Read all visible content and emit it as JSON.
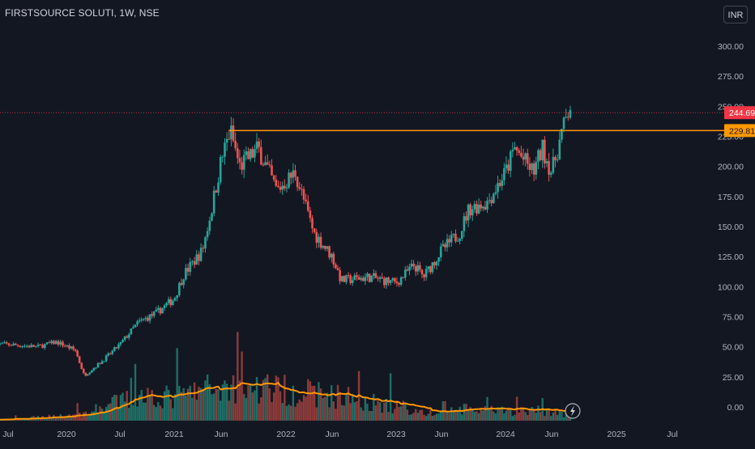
{
  "header": {
    "symbol_title": "FIRSTSOURCE SOLUTI, 1W, NSE",
    "currency_button": "INR"
  },
  "colors": {
    "background": "#131722",
    "up": "#26a69a",
    "down": "#ef5350",
    "volume_up": "#1f6e66",
    "volume_down": "#8e3b3a",
    "ma_line": "#ff9800",
    "horizontal_line": "#ff9800",
    "last_price_badge": "#f23645",
    "level_badge": "#ff9800",
    "axis_text": "#b2b5be",
    "grid": "#1e222d"
  },
  "chart_data": {
    "type": "candlestick",
    "interval": "1W",
    "x_tick_labels": [
      "Jul",
      "2020",
      "Jul",
      "2021",
      "Jun",
      "2022",
      "Jun",
      "2023",
      "Jun",
      "2024",
      "Jun",
      "2025",
      "Jul"
    ],
    "x_tick_dates": [
      "2019-07",
      "2020-01",
      "2020-07",
      "2021-01",
      "2021-06",
      "2022-01",
      "2022-06",
      "2023-01",
      "2023-06",
      "2024-01",
      "2024-06",
      "2025-01",
      "2025-07"
    ],
    "y_ticks": [
      0,
      25,
      50,
      75,
      100,
      125,
      150,
      175,
      200,
      225,
      250,
      275,
      300
    ],
    "y_tick_labels": [
      "0.00",
      "25.00",
      "50.00",
      "75.00",
      "100.00",
      "125.00",
      "150.00",
      "175.00",
      "200.00",
      "225.00",
      "250.00",
      "275.00",
      "300.00"
    ],
    "ylim": [
      -7,
      315
    ],
    "last_price": 244.69,
    "last_price_label": "244.69",
    "horizontal_level": 229.81,
    "horizontal_level_label": "229.81",
    "horizontal_level_start": "2021-06",
    "price_anchors": [
      {
        "date": "2019-07",
        "close": 52
      },
      {
        "date": "2019-10",
        "close": 50
      },
      {
        "date": "2019-12",
        "close": 54
      },
      {
        "date": "2020-02",
        "close": 47
      },
      {
        "date": "2020-03",
        "close": 26
      },
      {
        "date": "2020-05",
        "close": 38
      },
      {
        "date": "2020-07",
        "close": 52
      },
      {
        "date": "2020-09",
        "close": 70
      },
      {
        "date": "2020-11",
        "close": 78
      },
      {
        "date": "2021-01",
        "close": 90
      },
      {
        "date": "2021-02",
        "close": 110
      },
      {
        "date": "2021-04",
        "close": 130
      },
      {
        "date": "2021-05",
        "close": 165
      },
      {
        "date": "2021-06",
        "close": 205
      },
      {
        "date": "2021-07",
        "close": 230
      },
      {
        "date": "2021-08",
        "close": 200
      },
      {
        "date": "2021-10",
        "close": 215
      },
      {
        "date": "2021-12",
        "close": 180
      },
      {
        "date": "2022-02",
        "close": 195
      },
      {
        "date": "2022-04",
        "close": 145
      },
      {
        "date": "2022-06",
        "close": 125
      },
      {
        "date": "2022-07",
        "close": 105
      },
      {
        "date": "2022-10",
        "close": 108
      },
      {
        "date": "2023-01",
        "close": 103
      },
      {
        "date": "2023-03",
        "close": 118
      },
      {
        "date": "2023-04",
        "close": 108
      },
      {
        "date": "2023-06",
        "close": 130
      },
      {
        "date": "2023-08",
        "close": 145
      },
      {
        "date": "2023-09",
        "close": 165
      },
      {
        "date": "2023-11",
        "close": 170
      },
      {
        "date": "2024-01",
        "close": 195
      },
      {
        "date": "2024-02",
        "close": 215
      },
      {
        "date": "2024-04",
        "close": 195
      },
      {
        "date": "2024-05",
        "close": 215
      },
      {
        "date": "2024-06",
        "close": 195
      },
      {
        "date": "2024-07",
        "close": 225
      },
      {
        "date": "2024-08",
        "close": 250
      }
    ],
    "volume_anchors": [
      {
        "date": "2019-07",
        "volume": 1
      },
      {
        "date": "2020-03",
        "volume": 6
      },
      {
        "date": "2020-07",
        "volume": 17
      },
      {
        "date": "2020-10",
        "volume": 22
      },
      {
        "date": "2021-01",
        "volume": 20
      },
      {
        "date": "2021-04",
        "volume": 27
      },
      {
        "date": "2021-07",
        "volume": 30
      },
      {
        "date": "2021-12",
        "volume": 27
      },
      {
        "date": "2022-04",
        "volume": 24
      },
      {
        "date": "2022-08",
        "volume": 20
      },
      {
        "date": "2023-01",
        "volume": 12
      },
      {
        "date": "2023-05",
        "volume": 6
      },
      {
        "date": "2023-08",
        "volume": 10
      },
      {
        "date": "2024-01",
        "volume": 8
      },
      {
        "date": "2024-05",
        "volume": 9
      },
      {
        "date": "2024-08",
        "volume": 5
      }
    ],
    "volume_moving_average": true,
    "grid": false
  }
}
